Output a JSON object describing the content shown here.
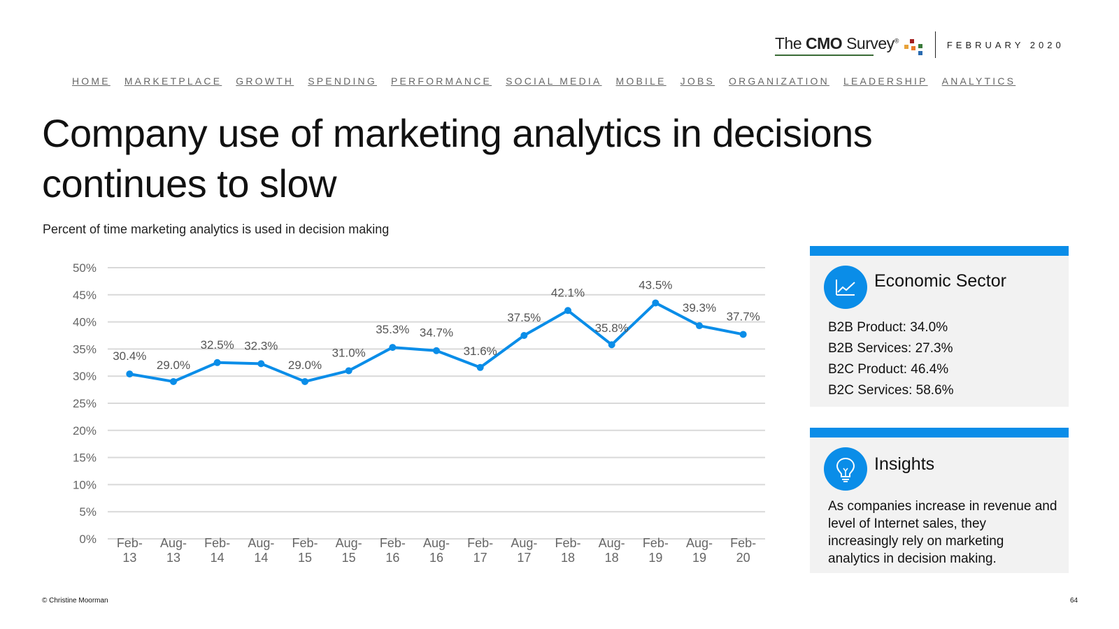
{
  "header": {
    "logo": {
      "prefix": "The ",
      "bold": "CMO",
      "suffix": " Survey",
      "registered": "®"
    },
    "date": "FEBRUARY 2020"
  },
  "nav": [
    {
      "label": "HOME"
    },
    {
      "label": "MARKETPLACE"
    },
    {
      "label": "GROWTH"
    },
    {
      "label": "SPENDING"
    },
    {
      "label": "PERFORMANCE"
    },
    {
      "label": "SOCIAL MEDIA"
    },
    {
      "label": "MOBILE"
    },
    {
      "label": "JOBS"
    },
    {
      "label": "ORGANIZATION"
    },
    {
      "label": "LEADERSHIP"
    },
    {
      "label": "ANALYTICS"
    }
  ],
  "title": "Company use of marketing analytics in decisions continues to slow",
  "subtitle": "Percent of time marketing analytics is used in decision making",
  "chart_data": {
    "type": "line",
    "categories": [
      [
        "Feb-",
        "13"
      ],
      [
        "Aug-",
        "13"
      ],
      [
        "Feb-",
        "14"
      ],
      [
        "Aug-",
        "14"
      ],
      [
        "Feb-",
        "15"
      ],
      [
        "Aug-",
        "15"
      ],
      [
        "Feb-",
        "16"
      ],
      [
        "Aug-",
        "16"
      ],
      [
        "Feb-",
        "17"
      ],
      [
        "Aug-",
        "17"
      ],
      [
        "Feb-",
        "18"
      ],
      [
        "Aug-",
        "18"
      ],
      [
        "Feb-",
        "19"
      ],
      [
        "Aug-",
        "19"
      ],
      [
        "Feb-",
        "20"
      ]
    ],
    "series": [
      {
        "values": [
          30.4,
          29.0,
          32.5,
          32.3,
          29.0,
          31.0,
          35.3,
          34.7,
          31.6,
          37.5,
          42.1,
          35.8,
          43.5,
          39.3,
          37.7
        ]
      }
    ],
    "data_labels": [
      "30.4%",
      "29.0%",
      "32.5%",
      "32.3%",
      "29.0%",
      "31.0%",
      "35.3%",
      "34.7%",
      "31.6%",
      "37.5%",
      "42.1%",
      "35.8%",
      "43.5%",
      "39.3%",
      "37.7%"
    ],
    "yticks": [
      0,
      5,
      10,
      15,
      20,
      25,
      30,
      35,
      40,
      45,
      50
    ],
    "ytick_labels": [
      "0%",
      "5%",
      "10%",
      "15%",
      "20%",
      "25%",
      "30%",
      "35%",
      "40%",
      "45%",
      "50%"
    ],
    "ylim": [
      0,
      50
    ],
    "grid": true,
    "color": "#0a8de8"
  },
  "panels": {
    "sector": {
      "title": "Economic Sector",
      "items": [
        "B2B Product: 34.0%",
        "B2B Services: 27.3%",
        "B2C Product: 46.4%",
        "B2C Services: 58.6%"
      ],
      "icon": "line-chart-icon"
    },
    "insights": {
      "title": "Insights",
      "text": "As companies increase in revenue and level of Internet sales, they increasingly rely on marketing analytics in decision making.",
      "icon": "lightbulb-icon"
    }
  },
  "footer": {
    "copyright": "© Christine Moorman",
    "page": "64"
  }
}
